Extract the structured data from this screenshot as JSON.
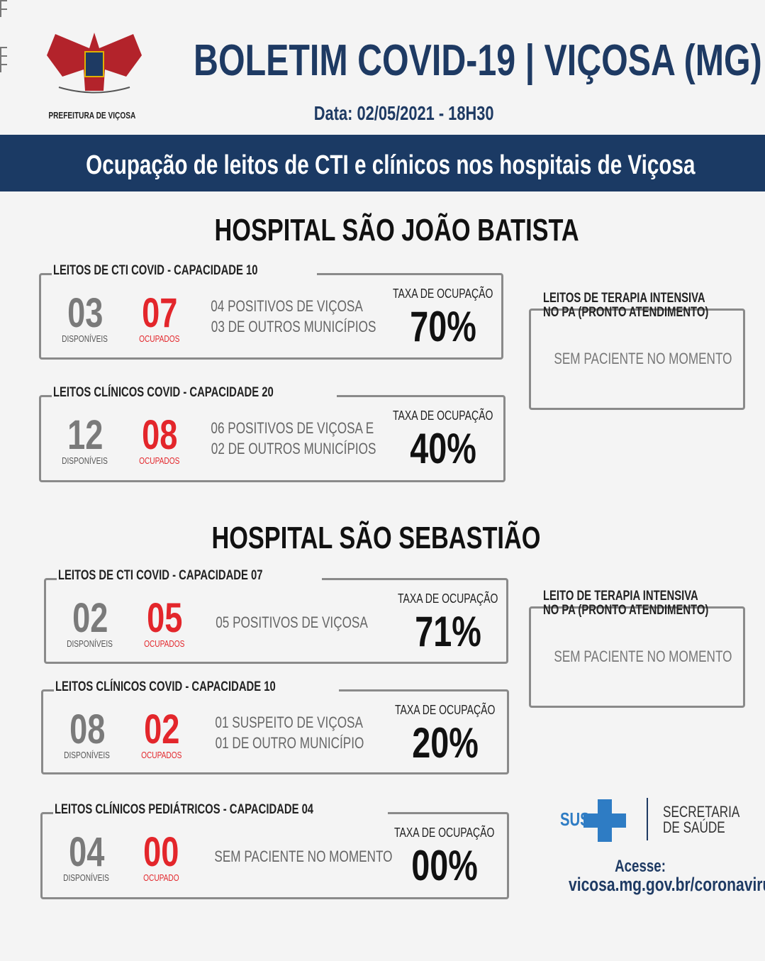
{
  "header": {
    "logo_text": "PREFEITURA DE VIÇOSA",
    "title": "BOLETIM COVID-19 | VIÇOSA (MG)",
    "date": "Data: 02/05/2021 - 18H30"
  },
  "banner": "Ocupação de leitos de CTI e clínicos nos hospitais de Viçosa",
  "hospitals": [
    {
      "name": "HOSPITAL SÃO JOÃO BATISTA",
      "boxes": [
        {
          "label": "LEITOS DE CTI COVID - CAPACIDADE 10",
          "available": "03",
          "available_label": "DISPONÍVEIS",
          "occupied": "07",
          "occupied_label": "OCUPADOS",
          "details": [
            "04 POSITIVOS DE VIÇOSA",
            "03 DE OUTROS MUNICÍPIOS"
          ],
          "rate_label": "TAXA DE OCUPAÇÃO",
          "rate": "70%"
        },
        {
          "label": "LEITOS CLÍNICOS COVID - CAPACIDADE 20",
          "available": "12",
          "available_label": "DISPONÍVEIS",
          "occupied": "08",
          "occupied_label": "OCUPADOS",
          "details": [
            "06 POSITIVOS DE VIÇOSA E",
            "02 DE OUTROS MUNICÍPIOS"
          ],
          "rate_label": "TAXA DE OCUPAÇÃO",
          "rate": "40%"
        }
      ],
      "side": {
        "label": [
          "LEITOS DE TERAPIA INTENSIVA",
          "NO PA (PRONTO ATENDIMENTO)"
        ],
        "text": "SEM PACIENTE NO MOMENTO"
      }
    },
    {
      "name": "HOSPITAL SÃO SEBASTIÃO",
      "boxes": [
        {
          "label": "LEITOS DE CTI COVID - CAPACIDADE 07",
          "available": "02",
          "available_label": "DISPONÍVEIS",
          "occupied": "05",
          "occupied_label": "OCUPADOS",
          "details": [
            "05 POSITIVOS DE VIÇOSA"
          ],
          "rate_label": "TAXA DE OCUPAÇÃO",
          "rate": "71%"
        },
        {
          "label": "LEITOS CLÍNICOS COVID - CAPACIDADE 10",
          "available": "08",
          "available_label": "DISPONÍVEIS",
          "occupied": "02",
          "occupied_label": "OCUPADOS",
          "details": [
            "01 SUSPEITO DE VIÇOSA",
            "01 DE OUTRO MUNICÍPIO"
          ],
          "rate_label": "TAXA DE OCUPAÇÃO",
          "rate": "20%"
        },
        {
          "label": "LEITOS CLÍNICOS PEDIÁTRICOS - CAPACIDADE 04",
          "available": "04",
          "available_label": "DISPONÍVEIS",
          "occupied": "00",
          "occupied_label": "OCUPADO",
          "details": [
            "SEM PACIENTE NO MOMENTO"
          ],
          "rate_label": "TAXA DE OCUPAÇÃO",
          "rate": "00%"
        }
      ],
      "side": {
        "label": [
          "LEITO DE TERAPIA INTENSIVA",
          "NO PA (PRONTO ATENDIMENTO)"
        ],
        "text": "SEM PACIENTE NO MOMENTO"
      }
    }
  ],
  "footer": {
    "sus": "SUS",
    "secretaria": [
      "SECRETARIA",
      "DE SAÚDE"
    ],
    "access": "Acesse:",
    "url": "vicosa.mg.gov.br/coronavirus"
  }
}
